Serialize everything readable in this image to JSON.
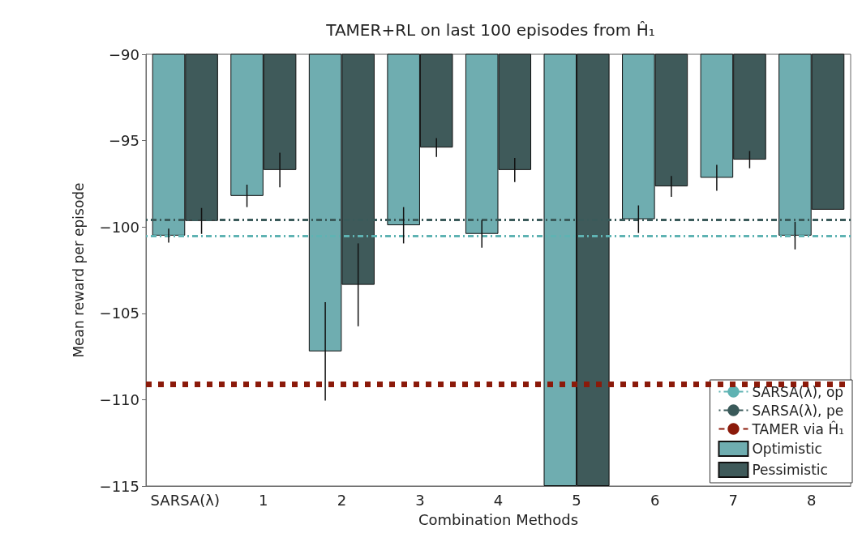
{
  "chart_data": {
    "type": "bar",
    "title": "TAMER+RL on last 100 episodes from Ĥ₁",
    "xlabel": "Combination Methods",
    "ylabel": "Mean reward per episode",
    "categories": [
      "SARSA(λ)",
      "1",
      "2",
      "3",
      "4",
      "5",
      "6",
      "7",
      "8"
    ],
    "series": [
      {
        "name": "Optimistic",
        "color": "#6fadb0",
        "values": [
          -100.5,
          -98.2,
          -107.2,
          -99.9,
          -100.4,
          -115,
          -99.55,
          -97.15,
          -100.5
        ],
        "errors": [
          0.4,
          0.65,
          2.85,
          1.05,
          0.8,
          null,
          0.8,
          0.75,
          0.8
        ]
      },
      {
        "name": "Pessimistic",
        "color": "#3f5a5a",
        "values": [
          -99.65,
          -96.7,
          -103.35,
          -95.4,
          -96.7,
          -115,
          -97.65,
          -96.1,
          -99.0
        ],
        "errors": [
          0.75,
          1.0,
          2.4,
          0.55,
          0.7,
          null,
          0.6,
          0.5,
          null
        ]
      }
    ],
    "ref_lines": [
      {
        "axis": "y",
        "value": -100.5,
        "label": "SARSA(λ), op",
        "color": "#5fb3b3",
        "line_style": "dashed"
      },
      {
        "axis": "y",
        "value": -99.6,
        "label": "SARSA(λ), pe",
        "color": "#3a5a5a",
        "line_style": "dashed"
      },
      {
        "axis": "y",
        "value": -109.1,
        "label": "TAMER via Ĥ₁",
        "color": "#8b1a0a",
        "line_style": "dotted"
      }
    ],
    "ylim": [
      -115,
      -90
    ],
    "yticks": [
      -115,
      -110,
      -105,
      -100,
      -95,
      -90
    ],
    "grid": false,
    "legend": "bottom right"
  }
}
